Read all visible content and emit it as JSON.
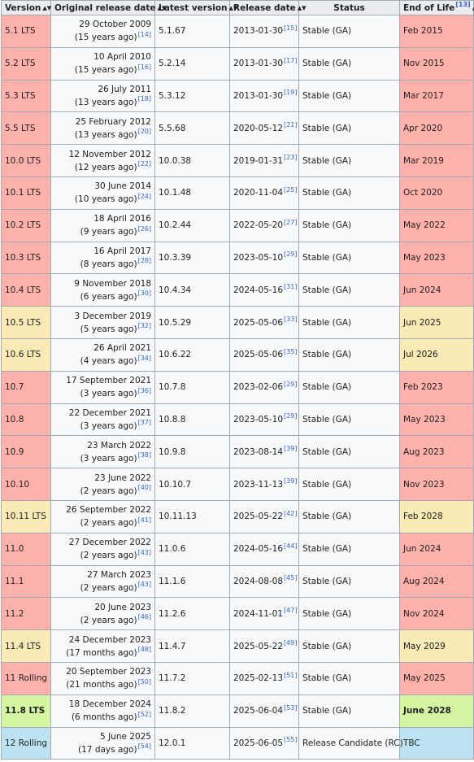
{
  "columns": [
    {
      "label": "Version",
      "sort_icon": "sort-arrows"
    },
    {
      "label": "Original release date",
      "sort_icon": "sort-arrows"
    },
    {
      "label": "Latest version",
      "sort_icon": "sort-arrows"
    },
    {
      "label": "Release date",
      "sort_icon": "sort-arrows"
    },
    {
      "label": "Status"
    },
    {
      "label": "End of Life",
      "ref": "[13]",
      "sort_icon": "sort-arrows"
    }
  ],
  "status_colors": {
    "unsupported": "#ffb1ab",
    "supported": "#f9eab6",
    "latest": "#d4f6a0",
    "preview": "#bde3f2"
  },
  "rows": [
    {
      "version": "5.1 LTS",
      "orig_date": "29 October 2009",
      "orig_ago": "(15 years ago)",
      "orig_ref": "[14]",
      "latest": "5.1.67",
      "rel_date": "2013-01-30",
      "rel_ref": "[15]",
      "status": "Stable (GA)",
      "eol": "Feb 2015",
      "state": "unsupported"
    },
    {
      "version": "5.2 LTS",
      "orig_date": "10 April 2010",
      "orig_ago": "(15 years ago)",
      "orig_ref": "[16]",
      "latest": "5.2.14",
      "rel_date": "2013-01-30",
      "rel_ref": "[17]",
      "status": "Stable (GA)",
      "eol": "Nov 2015",
      "state": "unsupported"
    },
    {
      "version": "5.3 LTS",
      "orig_date": "26 July 2011",
      "orig_ago": "(13 years ago)",
      "orig_ref": "[18]",
      "latest": "5.3.12",
      "rel_date": "2013-01-30",
      "rel_ref": "[19]",
      "status": "Stable (GA)",
      "eol": "Mar 2017",
      "state": "unsupported"
    },
    {
      "version": "5.5 LTS",
      "orig_date": "25 February 2012",
      "orig_ago": "(13 years ago)",
      "orig_ref": "[20]",
      "latest": "5.5.68",
      "rel_date": "2020-05-12",
      "rel_ref": "[21]",
      "status": "Stable (GA)",
      "eol": "Apr 2020",
      "state": "unsupported"
    },
    {
      "version": "10.0 LTS",
      "orig_date": "12 November 2012",
      "orig_ago": "(12 years ago)",
      "orig_ref": "[22]",
      "latest": "10.0.38",
      "rel_date": "2019-01-31",
      "rel_ref": "[23]",
      "status": "Stable (GA)",
      "eol": "Mar 2019",
      "state": "unsupported"
    },
    {
      "version": "10.1 LTS",
      "orig_date": "30 June 2014",
      "orig_ago": "(10 years ago)",
      "orig_ref": "[24]",
      "latest": "10.1.48",
      "rel_date": "2020-11-04",
      "rel_ref": "[25]",
      "status": "Stable (GA)",
      "eol": "Oct 2020",
      "state": "unsupported"
    },
    {
      "version": "10.2 LTS",
      "orig_date": "18 April 2016",
      "orig_ago": "(9 years ago)",
      "orig_ref": "[26]",
      "latest": "10.2.44",
      "rel_date": "2022-05-20",
      "rel_ref": "[27]",
      "status": "Stable (GA)",
      "eol": "May 2022",
      "state": "unsupported"
    },
    {
      "version": "10.3 LTS",
      "orig_date": "16 April 2017",
      "orig_ago": "(8 years ago)",
      "orig_ref": "[28]",
      "latest": "10.3.39",
      "rel_date": "2023-05-10",
      "rel_ref": "[29]",
      "status": "Stable (GA)",
      "eol": "May 2023",
      "state": "unsupported"
    },
    {
      "version": "10.4 LTS",
      "orig_date": "9 November 2018",
      "orig_ago": "(6 years ago)",
      "orig_ref": "[30]",
      "latest": "10.4.34",
      "rel_date": "2024-05-16",
      "rel_ref": "[31]",
      "status": "Stable (GA)",
      "eol": "Jun 2024",
      "state": "unsupported"
    },
    {
      "version": "10.5 LTS",
      "orig_date": "3 December 2019",
      "orig_ago": "(5 years ago)",
      "orig_ref": "[32]",
      "latest": "10.5.29",
      "rel_date": "2025-05-06",
      "rel_ref": "[33]",
      "status": "Stable (GA)",
      "eol": "Jun 2025",
      "state": "supported"
    },
    {
      "version": "10.6 LTS",
      "orig_date": "26 April 2021",
      "orig_ago": "(4 years ago)",
      "orig_ref": "[34]",
      "latest": "10.6.22",
      "rel_date": "2025-05-06",
      "rel_ref": "[35]",
      "status": "Stable (GA)",
      "eol": "Jul 2026",
      "state": "supported"
    },
    {
      "version": "10.7",
      "orig_date": "17 September 2021",
      "orig_ago": "(3 years ago)",
      "orig_ref": "[36]",
      "latest": "10.7.8",
      "rel_date": "2023-02-06",
      "rel_ref": "[29]",
      "status": "Stable (GA)",
      "eol": "Feb 2023",
      "state": "unsupported"
    },
    {
      "version": "10.8",
      "orig_date": "22 December 2021",
      "orig_ago": "(3 years ago)",
      "orig_ref": "[37]",
      "latest": "10.8.8",
      "rel_date": "2023-05-10",
      "rel_ref": "[29]",
      "status": "Stable (GA)",
      "eol": "May 2023",
      "state": "unsupported"
    },
    {
      "version": "10.9",
      "orig_date": "23 March 2022",
      "orig_ago": "(3 years ago)",
      "orig_ref": "[38]",
      "latest": "10.9.8",
      "rel_date": "2023-08-14",
      "rel_ref": "[39]",
      "status": "Stable (GA)",
      "eol": "Aug 2023",
      "state": "unsupported"
    },
    {
      "version": "10.10",
      "orig_date": "23 June 2022",
      "orig_ago": "(2 years ago)",
      "orig_ref": "[40]",
      "latest": "10.10.7",
      "rel_date": "2023-11-13",
      "rel_ref": "[39]",
      "status": "Stable (GA)",
      "eol": "Nov 2023",
      "state": "unsupported"
    },
    {
      "version": "10.11 LTS",
      "orig_date": "26 September 2022",
      "orig_ago": "(2 years ago)",
      "orig_ref": "[41]",
      "latest": "10.11.13",
      "rel_date": "2025-05-22",
      "rel_ref": "[42]",
      "status": "Stable (GA)",
      "eol": "Feb 2028",
      "state": "supported"
    },
    {
      "version": "11.0",
      "orig_date": "27 December 2022",
      "orig_ago": "(2 years ago)",
      "orig_ref": "[43]",
      "latest": "11.0.6",
      "rel_date": "2024-05-16",
      "rel_ref": "[44]",
      "status": "Stable (GA)",
      "eol": "Jun 2024",
      "state": "unsupported"
    },
    {
      "version": "11.1",
      "orig_date": "27 March 2023",
      "orig_ago": "(2 years ago)",
      "orig_ref": "[43]",
      "latest": "11.1.6",
      "rel_date": "2024-08-08",
      "rel_ref": "[45]",
      "status": "Stable (GA)",
      "eol": "Aug 2024",
      "state": "unsupported"
    },
    {
      "version": "11.2",
      "orig_date": "20 June 2023",
      "orig_ago": "(2 years ago)",
      "orig_ref": "[46]",
      "latest": "11.2.6",
      "rel_date": "2024-11-01",
      "rel_ref": "[47]",
      "status": "Stable (GA)",
      "eol": "Nov 2024",
      "state": "unsupported"
    },
    {
      "version": "11.4 LTS",
      "orig_date": "24 December 2023",
      "orig_ago": "(17 months ago)",
      "orig_ref": "[48]",
      "latest": "11.4.7",
      "rel_date": "2025-05-22",
      "rel_ref": "[49]",
      "status": "Stable (GA)",
      "eol": "May 2029",
      "state": "supported"
    },
    {
      "version": "11 Rolling",
      "orig_date": "20 September 2023",
      "orig_ago": "(21 months ago)",
      "orig_ref": "[50]",
      "latest": "11.7.2",
      "rel_date": "2025-02-13",
      "rel_ref": "[51]",
      "status": "Stable (GA)",
      "eol": "May 2025",
      "state": "unsupported"
    },
    {
      "version": "11.8 LTS",
      "orig_date": "18 December 2024",
      "orig_ago": "(6 months ago)",
      "orig_ref": "[52]",
      "latest": "11.8.2",
      "rel_date": "2025-06-04",
      "rel_ref": "[53]",
      "status": "Stable (GA)",
      "eol": "June 2028",
      "state": "latest"
    },
    {
      "version": "12 Rolling",
      "orig_date": "5 June 2025",
      "orig_ago": "(17 days ago)",
      "orig_ref": "[54]",
      "latest": "12.0.1",
      "rel_date": "2025-06-05",
      "rel_ref": "[55]",
      "status": "Release Candidate (RC)",
      "eol": "TBC",
      "state": "preview"
    }
  ]
}
